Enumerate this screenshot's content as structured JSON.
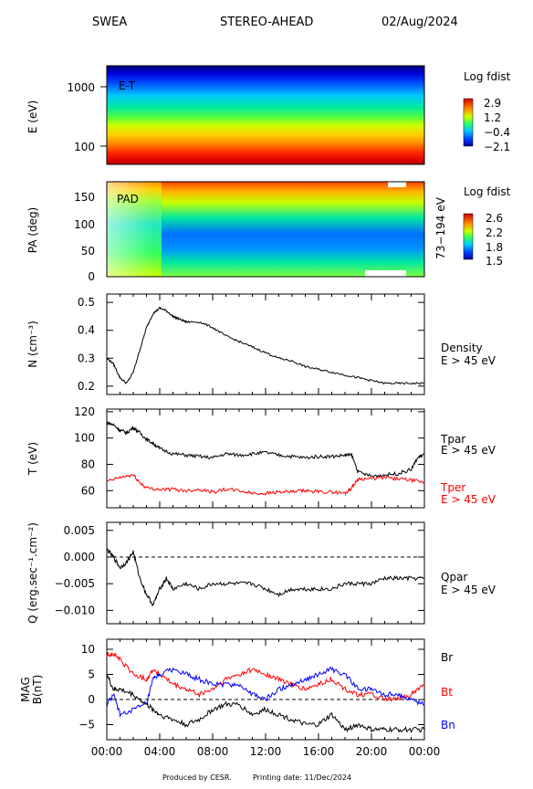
{
  "header": {
    "instrument": "SWEA",
    "spacecraft": "STEREO-AHEAD",
    "date": "02/Aug/2024"
  },
  "footer": {
    "credit": "Produced by CESR.",
    "printing": "Printing date: 11/Dec/2024"
  },
  "chart_data": [
    {
      "type": "heatmap",
      "panel": "energy-time",
      "inset_label": "E-T",
      "ylabel": "E (eV)",
      "yscale": "log",
      "ylim": [
        50,
        2000
      ],
      "yticks": [
        "1000",
        "100"
      ],
      "colorbar": {
        "title": "Log fdist",
        "ticks": [
          "2.9",
          "1.2",
          "−0.4",
          "−2.1"
        ],
        "range": [
          -2.1,
          2.9
        ]
      }
    },
    {
      "type": "heatmap",
      "panel": "pitch-angle",
      "inset_label": "PAD",
      "ylabel": "PA (deg)",
      "ylim": [
        0,
        180
      ],
      "yticks": [
        "150",
        "100",
        "50",
        "0"
      ],
      "right_label": "73−194 eV",
      "colorbar": {
        "title": "Log fdist",
        "ticks": [
          "2.6",
          "2.2",
          "1.8",
          "1.5"
        ],
        "range": [
          1.5,
          2.6
        ]
      }
    },
    {
      "type": "line",
      "panel": "density",
      "ylabel": "N (cm⁻³)",
      "ylim": [
        0.17,
        0.53
      ],
      "yticks": [
        "0.5",
        "0.4",
        "0.3",
        "0.2"
      ],
      "series": [
        {
          "name": "Density",
          "subtitle": "E > 45 eV",
          "color": "#000000",
          "x": [
            0,
            0.5,
            1,
            1.5,
            2,
            2.5,
            3,
            3.5,
            4,
            4.5,
            5,
            5.5,
            6,
            7,
            8,
            9,
            10,
            11,
            12,
            13,
            14,
            15,
            16,
            17,
            18,
            19,
            20,
            21,
            22,
            23,
            24
          ],
          "y": [
            0.3,
            0.28,
            0.23,
            0.21,
            0.25,
            0.33,
            0.41,
            0.46,
            0.48,
            0.47,
            0.45,
            0.44,
            0.43,
            0.43,
            0.41,
            0.38,
            0.36,
            0.34,
            0.32,
            0.3,
            0.29,
            0.27,
            0.26,
            0.25,
            0.24,
            0.23,
            0.22,
            0.21,
            0.21,
            0.21,
            0.21
          ]
        }
      ]
    },
    {
      "type": "line",
      "panel": "temperature",
      "ylabel": "T (eV)",
      "ylim": [
        47,
        122
      ],
      "yticks": [
        "120",
        "100",
        "80",
        "60"
      ],
      "series": [
        {
          "name": "Tpar",
          "subtitle": "E > 45 eV",
          "color": "#000000",
          "x": [
            0,
            0.5,
            1,
            1.5,
            2,
            2.5,
            3,
            3.5,
            4,
            5,
            6,
            7,
            8,
            9,
            10,
            11,
            12,
            13,
            14,
            15,
            16,
            17,
            18,
            18.5,
            19,
            20,
            21,
            22,
            23,
            23.5,
            24
          ],
          "y": [
            112,
            110,
            106,
            104,
            108,
            104,
            99,
            96,
            92,
            88,
            87,
            86,
            85,
            88,
            87,
            88,
            89,
            87,
            86,
            85,
            86,
            86,
            87,
            87,
            74,
            71,
            72,
            73,
            76,
            85,
            88
          ]
        },
        {
          "name": "Tper",
          "subtitle": "E > 45 eV",
          "color": "#ff0000",
          "x": [
            0,
            1,
            2,
            2.5,
            3,
            4,
            5,
            6,
            7,
            8,
            9,
            10,
            11,
            12,
            13,
            14,
            15,
            16,
            17,
            18,
            18.5,
            19,
            20,
            21,
            22,
            23,
            24
          ],
          "y": [
            67,
            70,
            72,
            66,
            62,
            61,
            61,
            60,
            61,
            59,
            61,
            60,
            58,
            58,
            59,
            59,
            60,
            59,
            59,
            58,
            62,
            69,
            69,
            70,
            69,
            68,
            66
          ]
        }
      ]
    },
    {
      "type": "line",
      "panel": "heat-flux",
      "ylabel": "Q (erg.sec⁻¹.cm⁻²)",
      "ylim": [
        -0.0125,
        0.0065
      ],
      "yticks": [
        "0.005",
        "0.000",
        "−0.005",
        "−0.010"
      ],
      "reference_line": 0,
      "series": [
        {
          "name": "Qpar",
          "subtitle": "E > 45 eV",
          "color": "#000000",
          "x": [
            0,
            0.5,
            1,
            1.5,
            2,
            2.5,
            3,
            3.5,
            4,
            4.5,
            5,
            6,
            7,
            8,
            9,
            10,
            11,
            12,
            13,
            14,
            15,
            16,
            17,
            18,
            19,
            20,
            21,
            22,
            23,
            24
          ],
          "y": [
            0.0015,
            0.0,
            -0.002,
            -0.001,
            0.001,
            -0.004,
            -0.007,
            -0.009,
            -0.006,
            -0.004,
            -0.006,
            -0.005,
            -0.006,
            -0.005,
            -0.005,
            -0.005,
            -0.005,
            -0.006,
            -0.007,
            -0.006,
            -0.006,
            -0.006,
            -0.006,
            -0.005,
            -0.005,
            -0.005,
            -0.004,
            -0.004,
            -0.004,
            -0.004
          ]
        }
      ]
    },
    {
      "type": "line",
      "panel": "magnetic-field",
      "ylabel": "MAG B(nT)",
      "ylim": [
        -8,
        12
      ],
      "yticks": [
        "10",
        "5",
        "0",
        "−5"
      ],
      "xticks": [
        "00:00",
        "04:00",
        "08:00",
        "12:00",
        "16:00",
        "20:00",
        "00:00"
      ],
      "xlim": [
        0,
        24
      ],
      "reference_line": 0,
      "series": [
        {
          "name": "Br",
          "color": "#000000",
          "x": [
            0,
            0.5,
            1,
            2,
            3,
            3.5,
            4,
            5,
            6,
            7,
            8,
            9,
            10,
            11,
            12,
            13,
            14,
            15,
            16,
            17,
            18,
            19,
            20,
            21,
            22,
            23,
            24
          ],
          "y": [
            5,
            2,
            2,
            1,
            -1,
            -2,
            -3,
            -4,
            -5,
            -4,
            -2,
            -1,
            -1,
            -3,
            -2,
            -3,
            -4,
            -5,
            -5,
            -3,
            -6,
            -5,
            -6,
            -6,
            -6,
            -6,
            -6
          ]
        },
        {
          "name": "Bt",
          "color": "#ff0000",
          "x": [
            0,
            0.5,
            1,
            2,
            3,
            3.5,
            4,
            5,
            6,
            7,
            8,
            9,
            10,
            11,
            12,
            13,
            14,
            15,
            16,
            17,
            18,
            19,
            20,
            21,
            22,
            23,
            24
          ],
          "y": [
            9,
            9,
            8,
            5,
            4,
            6,
            5,
            3,
            2,
            1,
            2,
            4,
            5,
            6,
            5,
            4,
            3,
            2,
            3,
            4,
            2,
            1,
            1,
            0,
            0,
            1,
            3
          ]
        },
        {
          "name": "Bn",
          "color": "#0000ff",
          "x": [
            0,
            0.5,
            1,
            2,
            3,
            3.5,
            4,
            5,
            6,
            7,
            8,
            9,
            10,
            11,
            12,
            13,
            14,
            15,
            16,
            17,
            18,
            19,
            20,
            21,
            22,
            23,
            24
          ],
          "y": [
            -1,
            1,
            -3,
            -2,
            -1,
            4,
            5,
            6,
            5,
            4,
            3,
            3,
            3,
            1,
            0,
            2,
            3,
            4,
            5,
            6,
            5,
            2,
            2,
            1,
            1,
            0,
            -1
          ]
        }
      ]
    }
  ]
}
